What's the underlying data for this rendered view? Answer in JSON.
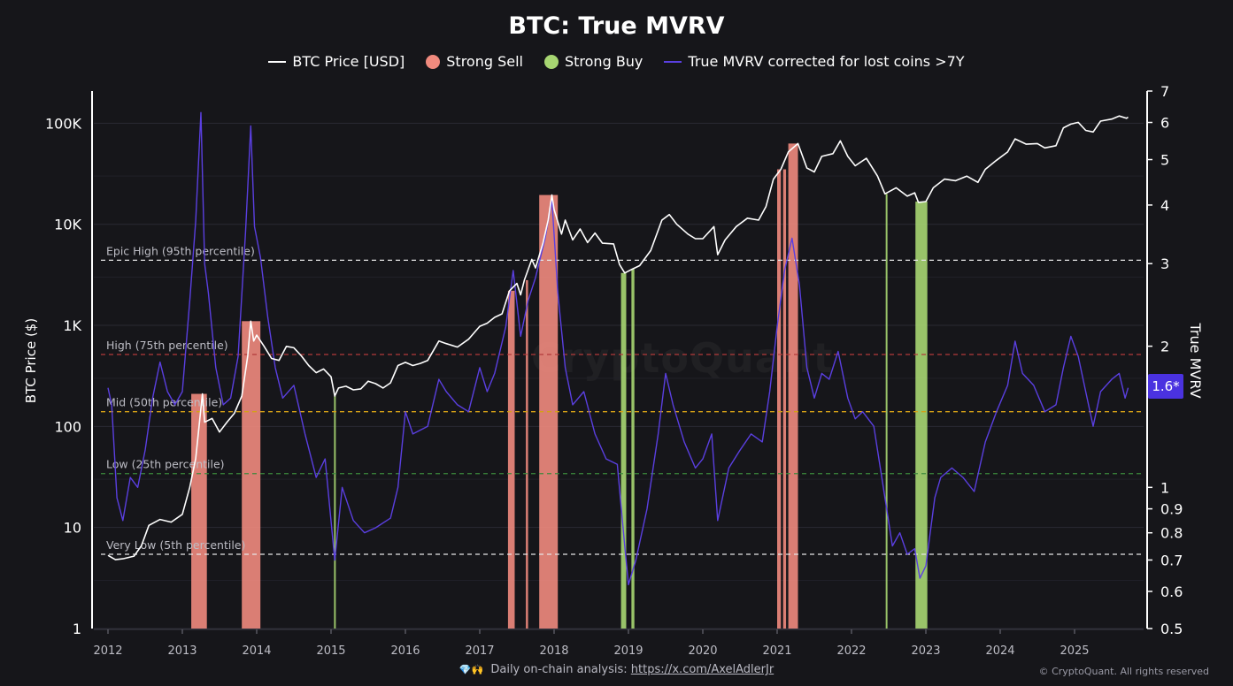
{
  "chart_data": {
    "type": "line",
    "title": "BTC: True MVRV",
    "legend_position": "top-center",
    "legend": [
      {
        "name": "BTC Price [USD]",
        "marker": "line",
        "color": "#ffffff"
      },
      {
        "name": "Strong Sell",
        "marker": "dot",
        "color": "#f08a7e"
      },
      {
        "name": "Strong Buy",
        "marker": "dot",
        "color": "#a7d672"
      },
      {
        "name": "True MVRV corrected for lost coins >7Y",
        "marker": "line",
        "color": "#5a3fe0"
      }
    ],
    "y_left": {
      "label": "BTC Price ($)",
      "scale": "log",
      "range": [
        1,
        200000
      ],
      "ticks": [
        "1",
        "10",
        "100",
        "1K",
        "10K",
        "100K"
      ]
    },
    "y_right": {
      "label": "True MVRV",
      "scale": "log",
      "range": [
        0.5,
        7
      ],
      "ticks": [
        "0.5",
        "0.6",
        "0.7",
        "0.8",
        "0.9",
        "1",
        "2",
        "3",
        "4",
        "5",
        "6",
        "7"
      ]
    },
    "x": {
      "range": [
        2012.0,
        2025.75
      ],
      "ticks": [
        "2012",
        "2013",
        "2014",
        "2015",
        "2016",
        "2017",
        "2018",
        "2019",
        "2020",
        "2021",
        "2022",
        "2023",
        "2024",
        "2025"
      ]
    },
    "grid": true,
    "current_value_label": "1.6*",
    "percentile_lines": [
      {
        "label": "Epic High (95th percentile)",
        "value": 3.05,
        "color": "#e6e6e6"
      },
      {
        "label": "High (75th percentile)",
        "value": 1.92,
        "color": "#b23a3a"
      },
      {
        "label": "Mid (50th percentile)",
        "value": 1.45,
        "color": "#d4a017"
      },
      {
        "label": "Low (25th percentile)",
        "value": 1.07,
        "color": "#3c8a3c"
      },
      {
        "label": "Very Low (5th percentile)",
        "value": 0.72,
        "color": "#e6e6e6"
      }
    ],
    "series": [
      {
        "name": "BTC Price [USD]",
        "axis": "left",
        "points": [
          [
            2012.0,
            5.3
          ],
          [
            2012.1,
            4.8
          ],
          [
            2012.2,
            4.9
          ],
          [
            2012.35,
            5.2
          ],
          [
            2012.45,
            6.6
          ],
          [
            2012.55,
            10.5
          ],
          [
            2012.7,
            12
          ],
          [
            2012.85,
            11.3
          ],
          [
            2013.0,
            13.5
          ],
          [
            2013.1,
            25
          ],
          [
            2013.18,
            48
          ],
          [
            2013.27,
            210
          ],
          [
            2013.3,
            110
          ],
          [
            2013.4,
            120
          ],
          [
            2013.5,
            88
          ],
          [
            2013.6,
            110
          ],
          [
            2013.7,
            135
          ],
          [
            2013.8,
            200
          ],
          [
            2013.88,
            500
          ],
          [
            2013.92,
            1100
          ],
          [
            2013.96,
            700
          ],
          [
            2014.0,
            800
          ],
          [
            2014.1,
            620
          ],
          [
            2014.2,
            470
          ],
          [
            2014.3,
            450
          ],
          [
            2014.4,
            620
          ],
          [
            2014.5,
            600
          ],
          [
            2014.6,
            500
          ],
          [
            2014.7,
            400
          ],
          [
            2014.8,
            340
          ],
          [
            2014.9,
            370
          ],
          [
            2015.0,
            310
          ],
          [
            2015.05,
            200
          ],
          [
            2015.1,
            240
          ],
          [
            2015.2,
            250
          ],
          [
            2015.3,
            230
          ],
          [
            2015.4,
            235
          ],
          [
            2015.5,
            280
          ],
          [
            2015.6,
            265
          ],
          [
            2015.7,
            240
          ],
          [
            2015.8,
            270
          ],
          [
            2015.9,
            400
          ],
          [
            2016.0,
            430
          ],
          [
            2016.1,
            400
          ],
          [
            2016.2,
            420
          ],
          [
            2016.3,
            450
          ],
          [
            2016.45,
            700
          ],
          [
            2016.55,
            660
          ],
          [
            2016.7,
            610
          ],
          [
            2016.85,
            730
          ],
          [
            2017.0,
            980
          ],
          [
            2017.1,
            1050
          ],
          [
            2017.2,
            1200
          ],
          [
            2017.3,
            1300
          ],
          [
            2017.4,
            2200
          ],
          [
            2017.5,
            2600
          ],
          [
            2017.55,
            2000
          ],
          [
            2017.6,
            2800
          ],
          [
            2017.7,
            4500
          ],
          [
            2017.75,
            3700
          ],
          [
            2017.85,
            6500
          ],
          [
            2017.92,
            11000
          ],
          [
            2017.97,
            19500
          ],
          [
            2018.0,
            14000
          ],
          [
            2018.1,
            8000
          ],
          [
            2018.15,
            11000
          ],
          [
            2018.25,
            7000
          ],
          [
            2018.35,
            9000
          ],
          [
            2018.45,
            6600
          ],
          [
            2018.55,
            8200
          ],
          [
            2018.65,
            6500
          ],
          [
            2018.8,
            6400
          ],
          [
            2018.88,
            4000
          ],
          [
            2018.95,
            3300
          ],
          [
            2019.05,
            3600
          ],
          [
            2019.15,
            3900
          ],
          [
            2019.3,
            5500
          ],
          [
            2019.45,
            11000
          ],
          [
            2019.55,
            12500
          ],
          [
            2019.65,
            10000
          ],
          [
            2019.8,
            8000
          ],
          [
            2019.9,
            7200
          ],
          [
            2020.0,
            7200
          ],
          [
            2020.15,
            9500
          ],
          [
            2020.2,
            5000
          ],
          [
            2020.3,
            7000
          ],
          [
            2020.45,
            9500
          ],
          [
            2020.6,
            11500
          ],
          [
            2020.75,
            11000
          ],
          [
            2020.85,
            15000
          ],
          [
            2020.95,
            28000
          ],
          [
            2021.05,
            35000
          ],
          [
            2021.15,
            52000
          ],
          [
            2021.28,
            63000
          ],
          [
            2021.4,
            36000
          ],
          [
            2021.5,
            33000
          ],
          [
            2021.6,
            47000
          ],
          [
            2021.75,
            50000
          ],
          [
            2021.85,
            67000
          ],
          [
            2021.95,
            47000
          ],
          [
            2022.05,
            38000
          ],
          [
            2022.2,
            45000
          ],
          [
            2022.35,
            30000
          ],
          [
            2022.45,
            20000
          ],
          [
            2022.6,
            23000
          ],
          [
            2022.75,
            19000
          ],
          [
            2022.85,
            20500
          ],
          [
            2022.9,
            16500
          ],
          [
            2023.0,
            16800
          ],
          [
            2023.1,
            23000
          ],
          [
            2023.25,
            28000
          ],
          [
            2023.4,
            27000
          ],
          [
            2023.55,
            30000
          ],
          [
            2023.7,
            26000
          ],
          [
            2023.8,
            35000
          ],
          [
            2023.95,
            43000
          ],
          [
            2024.1,
            52000
          ],
          [
            2024.2,
            70000
          ],
          [
            2024.35,
            62000
          ],
          [
            2024.5,
            63000
          ],
          [
            2024.6,
            57000
          ],
          [
            2024.75,
            60000
          ],
          [
            2024.85,
            90000
          ],
          [
            2024.95,
            98000
          ],
          [
            2025.05,
            102000
          ],
          [
            2025.15,
            85000
          ],
          [
            2025.25,
            82000
          ],
          [
            2025.35,
            105000
          ],
          [
            2025.5,
            110000
          ],
          [
            2025.6,
            118000
          ],
          [
            2025.7,
            112000
          ],
          [
            2025.72,
            115000
          ]
        ]
      },
      {
        "name": "True MVRV corrected for lost coins >7Y",
        "axis": "right",
        "points": [
          [
            2012.0,
            1.63
          ],
          [
            2012.05,
            1.5
          ],
          [
            2012.12,
            0.95
          ],
          [
            2012.2,
            0.85
          ],
          [
            2012.3,
            1.05
          ],
          [
            2012.4,
            1.0
          ],
          [
            2012.5,
            1.2
          ],
          [
            2012.6,
            1.55
          ],
          [
            2012.7,
            1.85
          ],
          [
            2012.8,
            1.6
          ],
          [
            2012.9,
            1.5
          ],
          [
            2013.0,
            1.6
          ],
          [
            2013.1,
            2.5
          ],
          [
            2013.18,
            3.7
          ],
          [
            2013.25,
            6.3
          ],
          [
            2013.3,
            3.0
          ],
          [
            2013.35,
            2.6
          ],
          [
            2013.45,
            1.8
          ],
          [
            2013.55,
            1.5
          ],
          [
            2013.65,
            1.55
          ],
          [
            2013.75,
            1.9
          ],
          [
            2013.85,
            3.5
          ],
          [
            2013.92,
            5.9
          ],
          [
            2013.97,
            3.6
          ],
          [
            2014.05,
            3.1
          ],
          [
            2014.15,
            2.3
          ],
          [
            2014.25,
            1.8
          ],
          [
            2014.35,
            1.55
          ],
          [
            2014.5,
            1.65
          ],
          [
            2014.65,
            1.3
          ],
          [
            2014.8,
            1.05
          ],
          [
            2014.92,
            1.15
          ],
          [
            2015.05,
            0.7
          ],
          [
            2015.15,
            1.0
          ],
          [
            2015.3,
            0.85
          ],
          [
            2015.45,
            0.8
          ],
          [
            2015.6,
            0.82
          ],
          [
            2015.8,
            0.86
          ],
          [
            2015.9,
            1.0
          ],
          [
            2016.0,
            1.45
          ],
          [
            2016.1,
            1.3
          ],
          [
            2016.3,
            1.35
          ],
          [
            2016.45,
            1.7
          ],
          [
            2016.55,
            1.6
          ],
          [
            2016.7,
            1.5
          ],
          [
            2016.85,
            1.45
          ],
          [
            2017.0,
            1.8
          ],
          [
            2017.1,
            1.6
          ],
          [
            2017.2,
            1.75
          ],
          [
            2017.35,
            2.2
          ],
          [
            2017.45,
            2.9
          ],
          [
            2017.55,
            2.1
          ],
          [
            2017.65,
            2.5
          ],
          [
            2017.75,
            2.8
          ],
          [
            2017.88,
            3.4
          ],
          [
            2017.97,
            4.1
          ],
          [
            2018.05,
            2.6
          ],
          [
            2018.15,
            1.8
          ],
          [
            2018.25,
            1.5
          ],
          [
            2018.4,
            1.6
          ],
          [
            2018.55,
            1.3
          ],
          [
            2018.7,
            1.15
          ],
          [
            2018.85,
            1.12
          ],
          [
            2018.95,
            0.75
          ],
          [
            2019.0,
            0.62
          ],
          [
            2019.1,
            0.7
          ],
          [
            2019.25,
            0.9
          ],
          [
            2019.4,
            1.3
          ],
          [
            2019.5,
            1.75
          ],
          [
            2019.6,
            1.5
          ],
          [
            2019.75,
            1.25
          ],
          [
            2019.9,
            1.1
          ],
          [
            2020.0,
            1.15
          ],
          [
            2020.12,
            1.3
          ],
          [
            2020.2,
            0.85
          ],
          [
            2020.35,
            1.1
          ],
          [
            2020.5,
            1.2
          ],
          [
            2020.65,
            1.3
          ],
          [
            2020.8,
            1.25
          ],
          [
            2020.9,
            1.6
          ],
          [
            2021.0,
            2.2
          ],
          [
            2021.1,
            2.9
          ],
          [
            2021.2,
            3.4
          ],
          [
            2021.3,
            2.7
          ],
          [
            2021.4,
            1.8
          ],
          [
            2021.5,
            1.55
          ],
          [
            2021.6,
            1.75
          ],
          [
            2021.7,
            1.7
          ],
          [
            2021.82,
            1.95
          ],
          [
            2021.95,
            1.55
          ],
          [
            2022.05,
            1.4
          ],
          [
            2022.15,
            1.45
          ],
          [
            2022.3,
            1.35
          ],
          [
            2022.45,
            0.95
          ],
          [
            2022.55,
            0.75
          ],
          [
            2022.65,
            0.8
          ],
          [
            2022.75,
            0.72
          ],
          [
            2022.85,
            0.74
          ],
          [
            2022.92,
            0.64
          ],
          [
            2023.0,
            0.68
          ],
          [
            2023.12,
            0.95
          ],
          [
            2023.2,
            1.05
          ],
          [
            2023.35,
            1.1
          ],
          [
            2023.5,
            1.05
          ],
          [
            2023.65,
            0.98
          ],
          [
            2023.8,
            1.25
          ],
          [
            2023.95,
            1.45
          ],
          [
            2024.1,
            1.65
          ],
          [
            2024.2,
            2.05
          ],
          [
            2024.3,
            1.75
          ],
          [
            2024.45,
            1.65
          ],
          [
            2024.6,
            1.45
          ],
          [
            2024.75,
            1.5
          ],
          [
            2024.85,
            1.8
          ],
          [
            2024.95,
            2.1
          ],
          [
            2025.05,
            1.9
          ],
          [
            2025.15,
            1.6
          ],
          [
            2025.25,
            1.35
          ],
          [
            2025.35,
            1.6
          ],
          [
            2025.5,
            1.7
          ],
          [
            2025.6,
            1.75
          ],
          [
            2025.68,
            1.55
          ],
          [
            2025.72,
            1.63
          ]
        ]
      }
    ],
    "strong_sell_periods": [
      [
        2013.12,
        2013.33
      ],
      [
        2013.8,
        2014.05
      ],
      [
        2017.38,
        2017.47
      ],
      [
        2017.62,
        2017.65
      ],
      [
        2017.8,
        2018.05
      ],
      [
        2021.0,
        2021.05
      ],
      [
        2021.08,
        2021.12
      ],
      [
        2021.15,
        2021.28
      ]
    ],
    "strong_buy_periods": [
      [
        2015.04,
        2015.06
      ],
      [
        2018.9,
        2018.97
      ],
      [
        2019.04,
        2019.08
      ],
      [
        2022.46,
        2022.48
      ],
      [
        2022.86,
        2023.02
      ]
    ]
  },
  "footer": {
    "emojis": "💎🙌",
    "analysis_text": "Daily on-chain analysis:",
    "analysis_link": "https://x.com/AxelAdlerJr",
    "copyright": "© CryptoQuant. All rights reserved"
  },
  "watermark": "CryptoQuant"
}
